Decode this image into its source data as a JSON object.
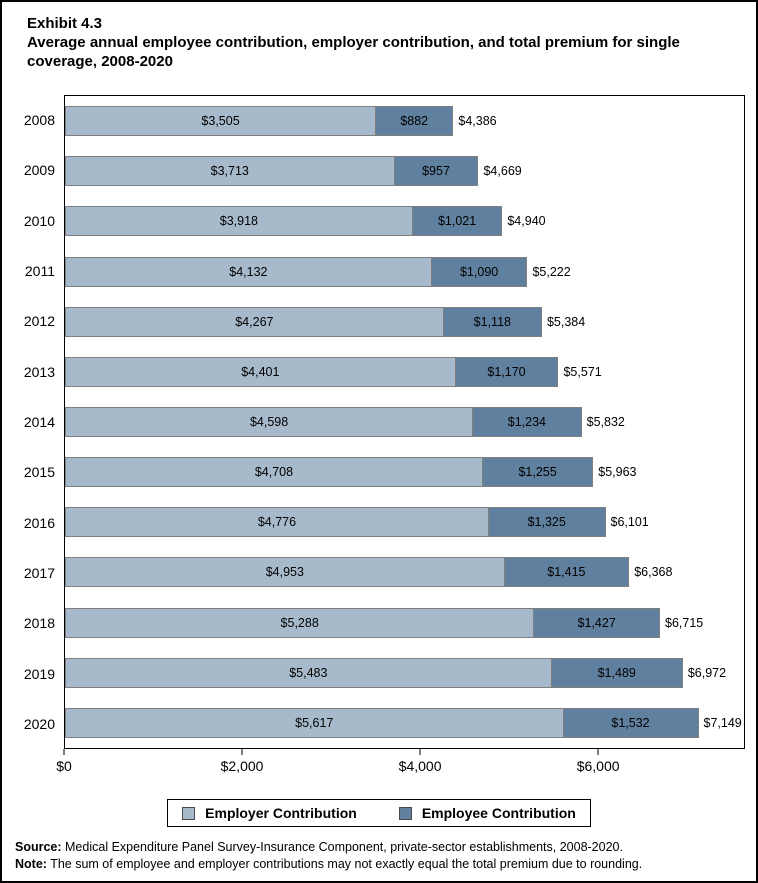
{
  "title": {
    "exhibit": "Exhibit 4.3",
    "text": "Average annual employee contribution, employer contribution, and total premium for single coverage, 2008-2020"
  },
  "chart_data": {
    "type": "bar",
    "orientation": "horizontal",
    "stacked": true,
    "title": "Average annual employee contribution, employer contribution, and total premium for single coverage, 2008-2020",
    "categories": [
      "2008",
      "2009",
      "2010",
      "2011",
      "2012",
      "2013",
      "2014",
      "2015",
      "2016",
      "2017",
      "2018",
      "2019",
      "2020"
    ],
    "series": [
      {
        "name": "Employer Contribution",
        "color": "#a7bacc",
        "values": [
          3505,
          3713,
          3918,
          4132,
          4267,
          4401,
          4598,
          4708,
          4776,
          4953,
          5288,
          5483,
          5617
        ]
      },
      {
        "name": "Employee Contribution",
        "color": "#60809f",
        "values": [
          882,
          957,
          1021,
          1090,
          1118,
          1170,
          1234,
          1255,
          1325,
          1415,
          1427,
          1489,
          1532
        ]
      }
    ],
    "totals": [
      4386,
      4669,
      4940,
      5222,
      5384,
      5571,
      5832,
      5963,
      6101,
      6368,
      6715,
      6972,
      7149
    ],
    "value_labels": {
      "employer": [
        "$3,505",
        "$3,713",
        "$3,918",
        "$4,132",
        "$4,267",
        "$4,401",
        "$4,598",
        "$4,708",
        "$4,776",
        "$4,953",
        "$5,288",
        "$5,483",
        "$5,617"
      ],
      "employee": [
        "$882",
        "$957",
        "$1,021",
        "$1,090",
        "$1,118",
        "$1,170",
        "$1,234",
        "$1,255",
        "$1,325",
        "$1,415",
        "$1,427",
        "$1,489",
        "$1,532"
      ],
      "totals": [
        "$4,386",
        "$4,669",
        "$4,940",
        "$5,222",
        "$5,384",
        "$5,571",
        "$5,832",
        "$5,963",
        "$6,101",
        "$6,368",
        "$6,715",
        "$6,972",
        "$7,149"
      ]
    },
    "xlabel": "",
    "ylabel": "",
    "xlim": [
      0,
      7650
    ],
    "x_ticks": [
      {
        "value": 0,
        "label": "$0"
      },
      {
        "value": 2000,
        "label": "$2,000"
      },
      {
        "value": 4000,
        "label": "$4,000"
      },
      {
        "value": 6000,
        "label": "$6,000"
      }
    ],
    "grid": false,
    "legend_position": "bottom"
  },
  "footer": {
    "source_label": "Source:",
    "source_text": " Medical Expenditure Panel Survey-Insurance Component, private-sector establishments, 2008-2020.",
    "note_label": "Note:",
    "note_text": " The sum of employee and employer contributions may not exactly equal the total premium due to rounding."
  }
}
